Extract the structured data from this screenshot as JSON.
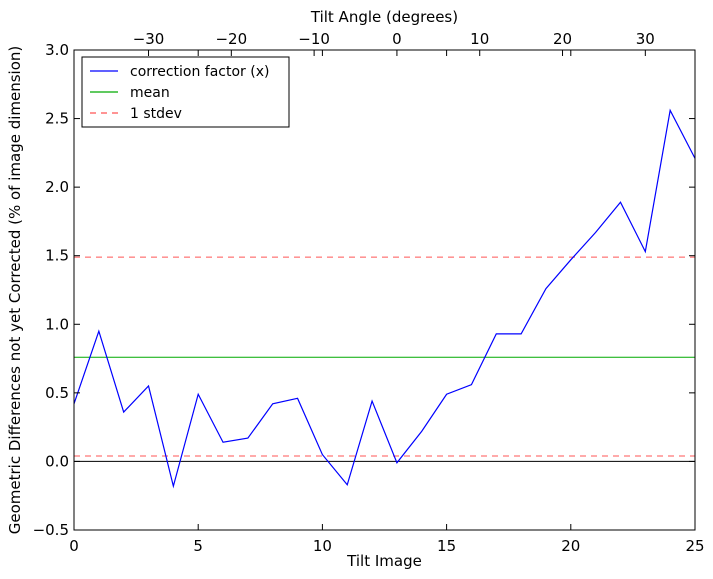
{
  "chart_data": {
    "type": "line",
    "xlabel": "Tilt Image",
    "ylabel": "Geometric Differences not yet Corrected (% of image dimension)",
    "top_axis_label": "Tilt Angle (degrees)",
    "xlim": [
      0,
      25
    ],
    "ylim": [
      -0.5,
      3.0
    ],
    "top_xlim": [
      -39,
      36
    ],
    "x_ticks": [
      0,
      5,
      10,
      15,
      20,
      25
    ],
    "x_tick_labels": [
      "0",
      "5",
      "10",
      "15",
      "20",
      "25"
    ],
    "y_ticks": [
      -0.5,
      0.0,
      0.5,
      1.0,
      1.5,
      2.0,
      2.5,
      3.0
    ],
    "y_tick_labels": [
      "−0.5",
      "0.0",
      "0.5",
      "1.0",
      "1.5",
      "2.0",
      "2.5",
      "3.0"
    ],
    "top_ticks": [
      -30,
      -20,
      -10,
      0,
      10,
      20,
      30
    ],
    "top_tick_labels": [
      "−30",
      "−20",
      "−10",
      "0",
      "10",
      "20",
      "30"
    ],
    "grid": false,
    "legend_position": "top-left",
    "series": [
      {
        "name": "correction factor (x)",
        "color": "#0000ff",
        "style": "solid",
        "x": [
          0,
          1,
          2,
          3,
          4,
          5,
          6,
          7,
          8,
          9,
          10,
          11,
          12,
          13,
          14,
          15,
          16,
          17,
          18,
          19,
          20,
          21,
          22,
          23,
          24,
          25
        ],
        "y": [
          0.42,
          0.95,
          0.36,
          0.55,
          -0.18,
          0.49,
          0.14,
          0.17,
          0.42,
          0.46,
          0.05,
          -0.17,
          0.44,
          -0.01,
          0.22,
          0.49,
          0.56,
          0.93,
          0.93,
          1.26,
          1.47,
          1.67,
          1.89,
          1.53,
          2.56,
          2.21
        ]
      }
    ],
    "reference_lines": [
      {
        "name": "mean",
        "value": 0.76,
        "color": "#00aa00",
        "style": "solid"
      },
      {
        "name": "1 stdev",
        "value": 1.49,
        "color": "#ff5555",
        "style": "dashed"
      },
      {
        "value": 0.04,
        "color": "#ff5555",
        "style": "dashed"
      },
      {
        "value": 0.0,
        "color": "#000000",
        "style": "solid"
      }
    ]
  }
}
